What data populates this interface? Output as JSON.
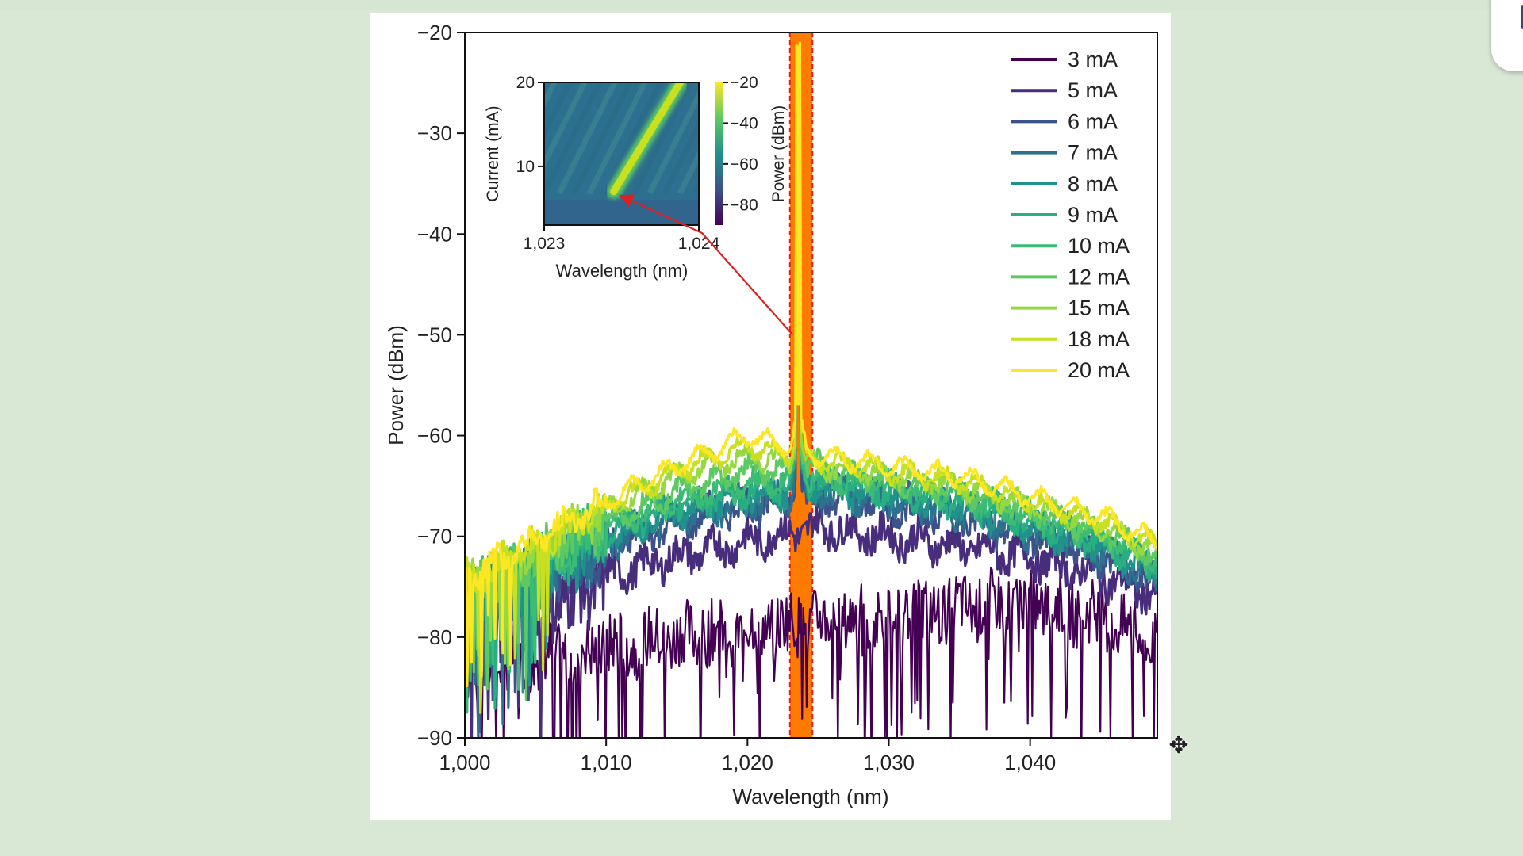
{
  "background_color": "#d8e8d4",
  "chart_data": [
    {
      "type": "line",
      "title": "",
      "xlabel": "Wavelength (nm)",
      "ylabel": "Power (dBm)",
      "xlim": [
        1000,
        1049
      ],
      "ylim": [
        -90,
        -20
      ],
      "xticks": [
        1000,
        1010,
        1020,
        1030,
        1040
      ],
      "xtick_labels": [
        "1,000",
        "1,010",
        "1,020",
        "1,030",
        "1,040"
      ],
      "yticks": [
        -90,
        -80,
        -70,
        -60,
        -50,
        -40,
        -30,
        -20
      ],
      "ytick_labels": [
        "−90",
        "−80",
        "−70",
        "−60",
        "−50",
        "−40",
        "−30",
        "−20"
      ],
      "legend_position": "top-right",
      "highlight_band": {
        "x": [
          1023,
          1024.6
        ],
        "color": "#ff7a00",
        "border_color": "#e02020"
      },
      "lasing_peak": {
        "x": 1023.6,
        "y": -22
      },
      "series": [
        {
          "name": "3 mA",
          "color": "#440154",
          "x": [
            1000,
            1005,
            1010,
            1015,
            1020,
            1025,
            1030,
            1035,
            1040,
            1045,
            1049
          ],
          "y": [
            -83,
            -82,
            -81,
            -80,
            -79,
            -78.5,
            -78,
            -77,
            -76.5,
            -78,
            -81
          ]
        },
        {
          "name": "5 mA",
          "color": "#472d7b",
          "x": [
            1000,
            1005,
            1010,
            1015,
            1020,
            1025,
            1030,
            1035,
            1040,
            1045,
            1049
          ],
          "y": [
            -80,
            -77,
            -74,
            -72,
            -70.5,
            -69,
            -70,
            -71,
            -72,
            -74,
            -76
          ]
        },
        {
          "name": "6 mA",
          "color": "#3b528b",
          "x": [
            1000,
            1005,
            1010,
            1015,
            1020,
            1025,
            1030,
            1035,
            1040,
            1045,
            1049
          ],
          "y": [
            -78,
            -74.5,
            -71,
            -68.5,
            -67,
            -66,
            -67,
            -68,
            -70,
            -72,
            -74.5
          ]
        },
        {
          "name": "7 mA",
          "color": "#2c728e",
          "x": [
            1000,
            1005,
            1010,
            1015,
            1020,
            1025,
            1030,
            1035,
            1040,
            1045,
            1049
          ],
          "y": [
            -77.5,
            -74,
            -70.5,
            -68,
            -66.5,
            -65.5,
            -66.5,
            -67.5,
            -69.5,
            -71.5,
            -74
          ]
        },
        {
          "name": "8 mA",
          "color": "#21918c",
          "x": [
            1000,
            1005,
            1010,
            1015,
            1020,
            1025,
            1030,
            1035,
            1040,
            1045,
            1049
          ],
          "y": [
            -77,
            -73.5,
            -70,
            -67.5,
            -66,
            -65,
            -66,
            -67,
            -69,
            -71,
            -73.5
          ]
        },
        {
          "name": "9 mA",
          "color": "#28ae80",
          "x": [
            1000,
            1005,
            1010,
            1015,
            1020,
            1025,
            1030,
            1035,
            1040,
            1045,
            1049
          ],
          "y": [
            -76.5,
            -73,
            -69.5,
            -67,
            -65.5,
            -64.5,
            -65.5,
            -66.5,
            -68.5,
            -70.5,
            -73
          ]
        },
        {
          "name": "10 mA",
          "color": "#3bbb75",
          "x": [
            1000,
            1005,
            1010,
            1015,
            1020,
            1025,
            1030,
            1035,
            1040,
            1045,
            1049
          ],
          "y": [
            -76,
            -72.5,
            -69,
            -66.5,
            -65,
            -64,
            -65,
            -66,
            -68,
            -70,
            -72.5
          ]
        },
        {
          "name": "12 mA",
          "color": "#5ec962",
          "x": [
            1000,
            1005,
            1010,
            1015,
            1020,
            1025,
            1030,
            1035,
            1040,
            1045,
            1049
          ],
          "y": [
            -75.5,
            -72,
            -68.5,
            -65.5,
            -63.5,
            -63,
            -64.5,
            -65.5,
            -67.5,
            -69.5,
            -72
          ]
        },
        {
          "name": "15 mA",
          "color": "#95d840",
          "x": [
            1000,
            1005,
            1010,
            1015,
            1020,
            1025,
            1030,
            1035,
            1040,
            1045,
            1049
          ],
          "y": [
            -75,
            -71.5,
            -67.5,
            -64,
            -62,
            -63,
            -64,
            -65,
            -67,
            -69,
            -71.5
          ]
        },
        {
          "name": "18 mA",
          "color": "#c8e020",
          "x": [
            1000,
            1005,
            1010,
            1015,
            1020,
            1025,
            1030,
            1035,
            1040,
            1045,
            1049
          ],
          "y": [
            -74.5,
            -71,
            -67,
            -63.5,
            -61,
            -62.5,
            -63.5,
            -64.5,
            -66.5,
            -68.5,
            -71
          ]
        },
        {
          "name": "20 mA",
          "color": "#fde725",
          "x": [
            1000,
            1005,
            1010,
            1015,
            1020,
            1025,
            1030,
            1035,
            1040,
            1045,
            1049
          ],
          "y": [
            -74,
            -70.5,
            -66.5,
            -63,
            -60,
            -62,
            -63,
            -64,
            -66,
            -68,
            -70.5
          ]
        }
      ]
    },
    {
      "type": "heatmap",
      "xlabel": "Wavelength (nm)",
      "ylabel": "Current (mA)",
      "xlim": [
        1023,
        1024
      ],
      "ylim": [
        3,
        20
      ],
      "xticks": [
        1023,
        1024
      ],
      "xtick_labels": [
        "1,023",
        "1,024"
      ],
      "yticks": [
        10,
        20
      ],
      "ytick_labels": [
        "10",
        "20"
      ],
      "colorbar": {
        "label": "Power (dBm)",
        "range": [
          -90,
          -20
        ],
        "ticks": [
          -20,
          -40,
          -60,
          -80
        ],
        "tick_labels": [
          "−20",
          "−40",
          "−60",
          "−80"
        ]
      },
      "lasing_line": {
        "from": {
          "x": 1023.45,
          "y": 7
        },
        "to": {
          "x": 1023.88,
          "y": 20
        }
      },
      "background_level": -72,
      "arrow_color": "#e02020"
    }
  ]
}
